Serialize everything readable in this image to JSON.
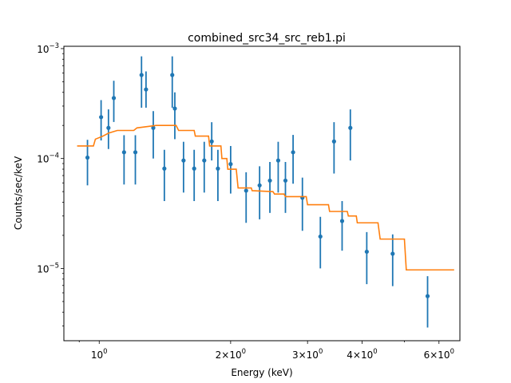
{
  "chart_data": {
    "type": "scatter",
    "title": "combined_src34_src_reb1.pi",
    "xlabel": "Energy (keV)",
    "ylabel": "Counts/sec/keV",
    "xscale": "log",
    "yscale": "log",
    "xlim": [
      0.83,
      6.7
    ],
    "ylim": [
      2.2e-06,
      0.00105
    ],
    "xticks": [
      {
        "value": 1,
        "base": "10",
        "exp": "0"
      },
      {
        "value": 2,
        "base": "2×10",
        "exp": "0"
      },
      {
        "value": 3,
        "base": "3×10",
        "exp": "0"
      },
      {
        "value": 4,
        "base": "4×10",
        "exp": "0"
      },
      {
        "value": 6,
        "base": "6×10",
        "exp": "0"
      }
    ],
    "yticks": [
      {
        "value": 0.001,
        "base": "10",
        "exp": "−3"
      },
      {
        "value": 0.0001,
        "base": "10",
        "exp": "−4"
      },
      {
        "value": 1e-05,
        "base": "10",
        "exp": "−5"
      }
    ],
    "grid": false,
    "series": [
      {
        "kind": "points-with-errors",
        "color": "#1f77b4",
        "points": [
          {
            "x": 0.94,
            "y": 0.000102,
            "lo": 5.7e-05,
            "hi": 0.000148
          },
          {
            "x": 1.01,
            "y": 0.000238,
            "lo": 0.000146,
            "hi": 0.00034
          },
          {
            "x": 1.05,
            "y": 0.00019,
            "lo": 0.000122,
            "hi": 0.00028
          },
          {
            "x": 1.08,
            "y": 0.000355,
            "lo": 0.000215,
            "hi": 0.00051
          },
          {
            "x": 1.14,
            "y": 0.000114,
            "lo": 5.8e-05,
            "hi": 0.000163
          },
          {
            "x": 1.21,
            "y": 0.000114,
            "lo": 5.8e-05,
            "hi": 0.000163
          },
          {
            "x": 1.25,
            "y": 0.000575,
            "lo": 0.00029,
            "hi": 0.00085
          },
          {
            "x": 1.28,
            "y": 0.000425,
            "lo": 0.00029,
            "hi": 0.00062
          },
          {
            "x": 1.33,
            "y": 0.00019,
            "lo": 0.0001,
            "hi": 0.00027
          },
          {
            "x": 1.41,
            "y": 8.1e-05,
            "lo": 4.1e-05,
            "hi": 0.00012
          },
          {
            "x": 1.47,
            "y": 0.000575,
            "lo": 0.00029,
            "hi": 0.00085
          },
          {
            "x": 1.49,
            "y": 0.000285,
            "lo": 0.00015,
            "hi": 0.0004
          },
          {
            "x": 1.56,
            "y": 9.6e-05,
            "lo": 4.9e-05,
            "hi": 0.000142
          },
          {
            "x": 1.65,
            "y": 8.1e-05,
            "lo": 4.1e-05,
            "hi": 0.00012
          },
          {
            "x": 1.74,
            "y": 9.6e-05,
            "lo": 4.9e-05,
            "hi": 0.000142
          },
          {
            "x": 1.81,
            "y": 0.000143,
            "lo": 9.6e-05,
            "hi": 0.000214
          },
          {
            "x": 1.87,
            "y": 8.1e-05,
            "lo": 4.1e-05,
            "hi": 0.00012
          },
          {
            "x": 2.0,
            "y": 8.9e-05,
            "lo": 4.8e-05,
            "hi": 0.00013
          },
          {
            "x": 2.17,
            "y": 5.1e-05,
            "lo": 2.6e-05,
            "hi": 7.5e-05
          },
          {
            "x": 2.33,
            "y": 5.7e-05,
            "lo": 2.8e-05,
            "hi": 8.5e-05
          },
          {
            "x": 2.46,
            "y": 6.3e-05,
            "lo": 3.2e-05,
            "hi": 9.3e-05
          },
          {
            "x": 2.57,
            "y": 9.6e-05,
            "lo": 4.9e-05,
            "hi": 0.000142
          },
          {
            "x": 2.67,
            "y": 6.3e-05,
            "lo": 3.2e-05,
            "hi": 9.3e-05
          },
          {
            "x": 2.78,
            "y": 0.000114,
            "lo": 5.9e-05,
            "hi": 0.000164
          },
          {
            "x": 2.92,
            "y": 4.4e-05,
            "lo": 2.2e-05,
            "hi": 6.7e-05
          },
          {
            "x": 3.21,
            "y": 1.95e-05,
            "lo": 1e-05,
            "hi": 2.95e-05
          },
          {
            "x": 3.45,
            "y": 0.000143,
            "lo": 7.3e-05,
            "hi": 0.000214
          },
          {
            "x": 3.6,
            "y": 2.7e-05,
            "lo": 1.45e-05,
            "hi": 4.1e-05
          },
          {
            "x": 3.76,
            "y": 0.00019,
            "lo": 9.6e-05,
            "hi": 0.00028
          },
          {
            "x": 4.1,
            "y": 1.42e-05,
            "lo": 7.2e-06,
            "hi": 2.14e-05
          },
          {
            "x": 4.7,
            "y": 1.36e-05,
            "lo": 6.9e-06,
            "hi": 2.04e-05
          },
          {
            "x": 5.65,
            "y": 5.6e-06,
            "lo": 2.9e-06,
            "hi": 8.5e-06
          }
        ]
      },
      {
        "kind": "step-line",
        "color": "#ff7f0e",
        "steps": [
          [
            0.89,
            0.00013
          ],
          [
            0.97,
            0.00013
          ],
          [
            0.98,
            0.00015
          ],
          [
            1.02,
            0.00016
          ],
          [
            1.05,
            0.00017
          ],
          [
            1.1,
            0.00018
          ],
          [
            1.2,
            0.00018
          ],
          [
            1.22,
            0.00019
          ],
          [
            1.35,
            0.0002
          ],
          [
            1.5,
            0.0002
          ],
          [
            1.52,
            0.00018
          ],
          [
            1.65,
            0.00018
          ],
          [
            1.66,
            0.00016
          ],
          [
            1.78,
            0.00016
          ],
          [
            1.79,
            0.00013
          ],
          [
            1.9,
            0.00013
          ],
          [
            1.91,
            0.0001
          ],
          [
            1.96,
            0.0001
          ],
          [
            1.97,
            8e-05
          ],
          [
            2.06,
            8e-05
          ],
          [
            2.08,
            5.4e-05
          ],
          [
            2.23,
            5.4e-05
          ],
          [
            2.24,
            5.1e-05
          ],
          [
            2.5,
            5e-05
          ],
          [
            2.52,
            4.75e-05
          ],
          [
            2.65,
            4.75e-05
          ],
          [
            2.67,
            4.5e-05
          ],
          [
            2.98,
            4.5e-05
          ],
          [
            3.0,
            3.8e-05
          ],
          [
            3.35,
            3.8e-05
          ],
          [
            3.37,
            3.3e-05
          ],
          [
            3.7,
            3.3e-05
          ],
          [
            3.72,
            3e-05
          ],
          [
            3.88,
            3e-05
          ],
          [
            3.9,
            2.6e-05
          ],
          [
            4.35,
            2.6e-05
          ],
          [
            4.4,
            1.85e-05
          ],
          [
            5.0,
            1.85e-05
          ],
          [
            5.05,
            9.7e-06
          ],
          [
            6.5,
            9.7e-06
          ]
        ]
      }
    ]
  }
}
